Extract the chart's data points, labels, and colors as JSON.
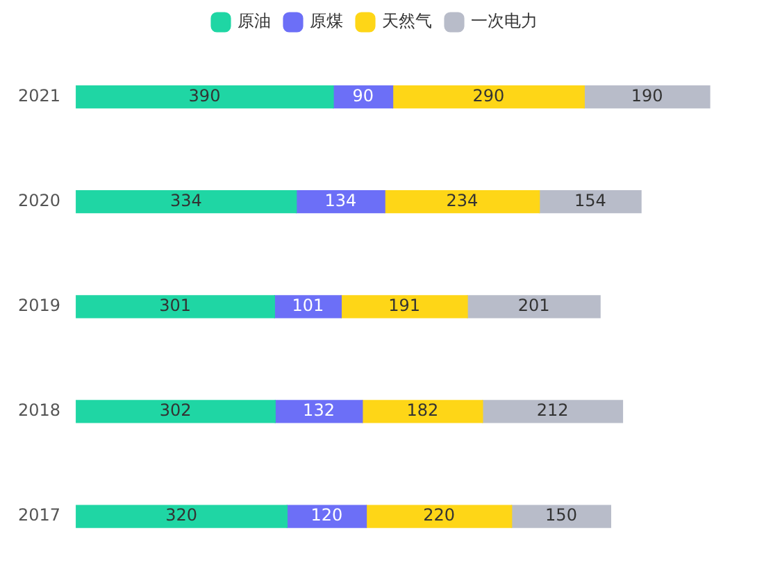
{
  "chart_data": {
    "type": "bar",
    "orientation": "horizontal",
    "stacked": true,
    "data_labels": true,
    "legend": "top",
    "grid": false,
    "tick_labels": "y",
    "categories": [
      "2021",
      "2020",
      "2019",
      "2018",
      "2017"
    ],
    "series": [
      {
        "name": "原油",
        "color": "#1fd6a4",
        "values": [
          390,
          334,
          301,
          302,
          320
        ]
      },
      {
        "name": "原煤",
        "color": "#6c6ff7",
        "values": [
          90,
          134,
          101,
          132,
          120
        ]
      },
      {
        "name": "天然气",
        "color": "#fed617",
        "values": [
          290,
          234,
          191,
          182,
          220
        ]
      },
      {
        "name": "一次电力",
        "color": "#b8bcc9",
        "values": [
          190,
          154,
          201,
          212,
          150
        ]
      }
    ]
  }
}
